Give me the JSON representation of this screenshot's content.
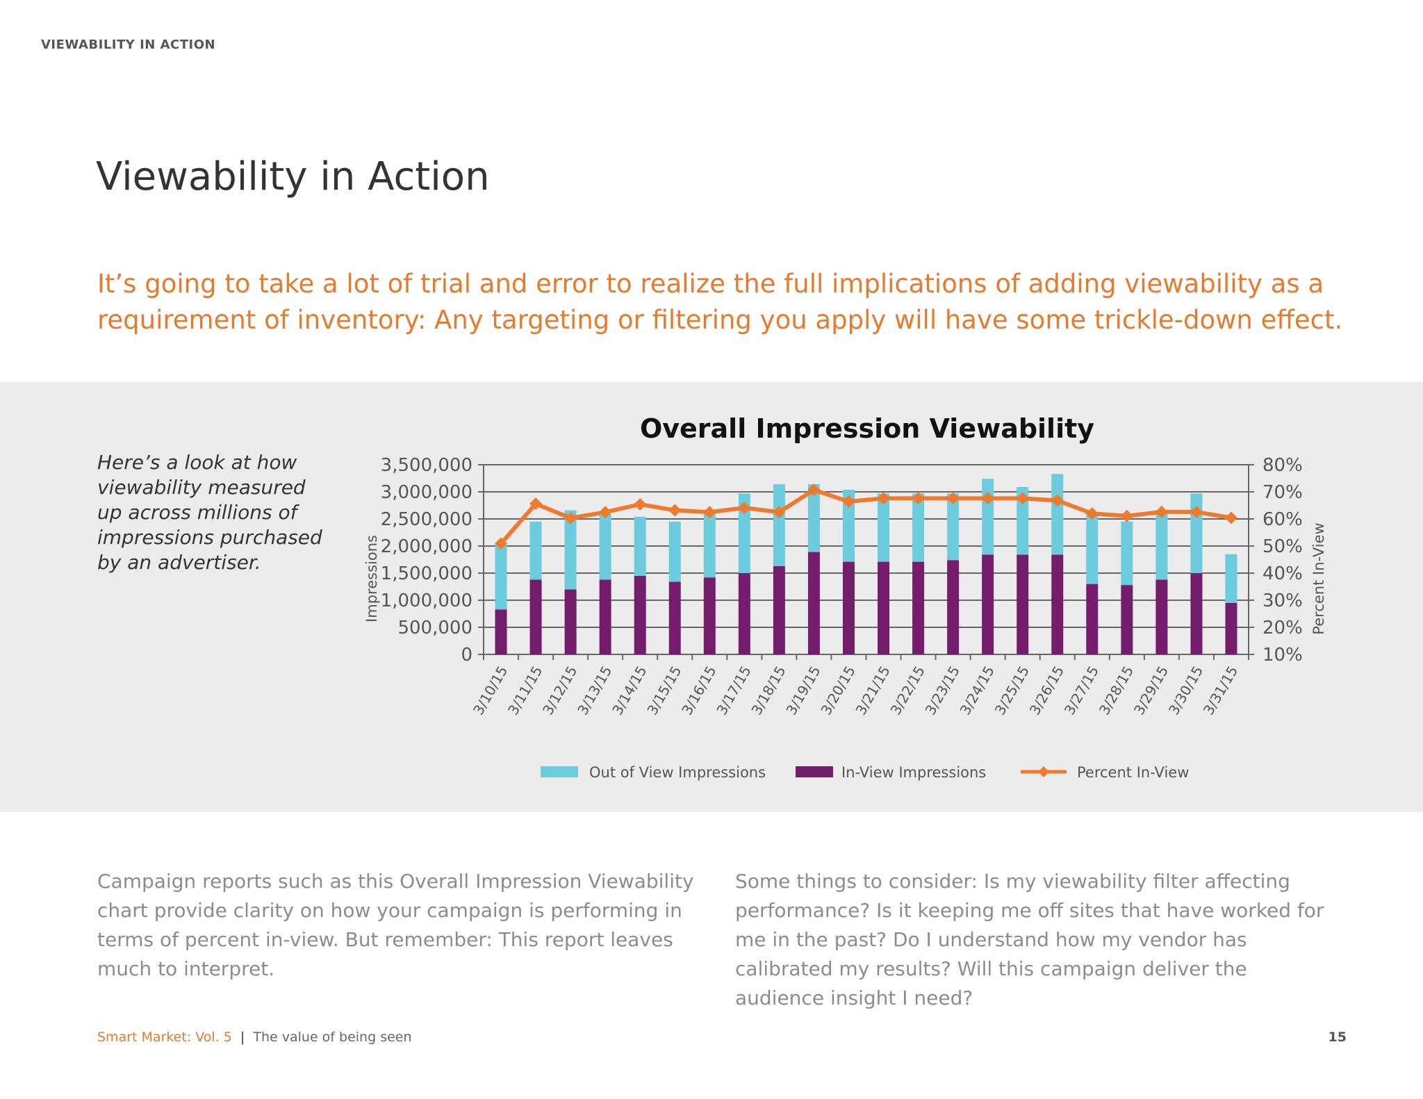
{
  "header": {
    "section_label": "VIEWABILITY IN ACTION"
  },
  "title": "Viewability in Action",
  "subtitle": "It’s going to take a lot of trial and error to realize the full implications of adding viewability as a requirement of inventory: Any targeting or filtering you apply will have some trickle-down effect.",
  "intro": "Here’s a look at how viewability measured up across millions of impressions purchased by an advertiser.",
  "chart_data": {
    "type": "bar",
    "stacked": true,
    "title": "Overall Impression Viewability",
    "ylabel": "Impressions",
    "y2label": "Percent In-View",
    "ylim": [
      0,
      3500000
    ],
    "y2lim": [
      0.1,
      0.8
    ],
    "yticks": [
      "0",
      "500,000",
      "1,000,000",
      "1,500,000",
      "2,000,000",
      "2,500,000",
      "3,000,000",
      "3,500,000"
    ],
    "y2ticks": [
      "10%",
      "20%",
      "30%",
      "40%",
      "50%",
      "60%",
      "70%",
      "80%"
    ],
    "grid": true,
    "legend": "bottom",
    "categories": [
      "3/10/15",
      "3/11/15",
      "3/12/15",
      "3/13/15",
      "3/14/15",
      "3/15/15",
      "3/16/15",
      "3/17/15",
      "3/18/15",
      "3/19/15",
      "3/20/15",
      "3/21/15",
      "3/22/15",
      "3/23/15",
      "3/24/15",
      "3/25/15",
      "3/26/15",
      "3/27/15",
      "3/28/15",
      "3/29/15",
      "3/30/15",
      "3/31/15"
    ],
    "series": [
      {
        "name": "Out of View Impressions",
        "type": "bar",
        "color": "#6ccbdc",
        "values": [
          1230000,
          1070000,
          1460000,
          1220000,
          1090000,
          1110000,
          1180000,
          1470000,
          1510000,
          1250000,
          1330000,
          1260000,
          1260000,
          1230000,
          1400000,
          1250000,
          1490000,
          1300000,
          1170000,
          1220000,
          1470000,
          900000
        ]
      },
      {
        "name": "In-View Impressions",
        "type": "bar",
        "color": "#731d6c",
        "values": [
          830000,
          1380000,
          1200000,
          1380000,
          1450000,
          1340000,
          1420000,
          1500000,
          1630000,
          1890000,
          1710000,
          1710000,
          1710000,
          1740000,
          1840000,
          1840000,
          1840000,
          1300000,
          1280000,
          1380000,
          1500000,
          950000
        ]
      },
      {
        "name": "Percent In-View",
        "type": "line",
        "axis": "right",
        "color": "#ee7a30",
        "values": [
          0.509,
          0.656,
          0.603,
          0.625,
          0.654,
          0.632,
          0.625,
          0.641,
          0.625,
          0.707,
          0.664,
          0.676,
          0.676,
          0.676,
          0.676,
          0.676,
          0.668,
          0.62,
          0.611,
          0.626,
          0.626,
          0.604
        ]
      }
    ]
  },
  "body_left": "Campaign reports such as this Overall Impression Viewability chart provide clarity on how your campaign is performing in terms of percent in-view. But remember: This report leaves much to interpret.",
  "body_right": "Some things to consider: Is my viewability filter affecting performance? Is it keeping me off sites that have worked for me in the past? Do I understand how my vendor has calibrated my results? Will this campaign deliver the audience insight I need?",
  "footer": {
    "publication": "Smart Market: Vol. 5",
    "separator": "|",
    "tagline": "The value of being seen",
    "page_number": "15"
  }
}
